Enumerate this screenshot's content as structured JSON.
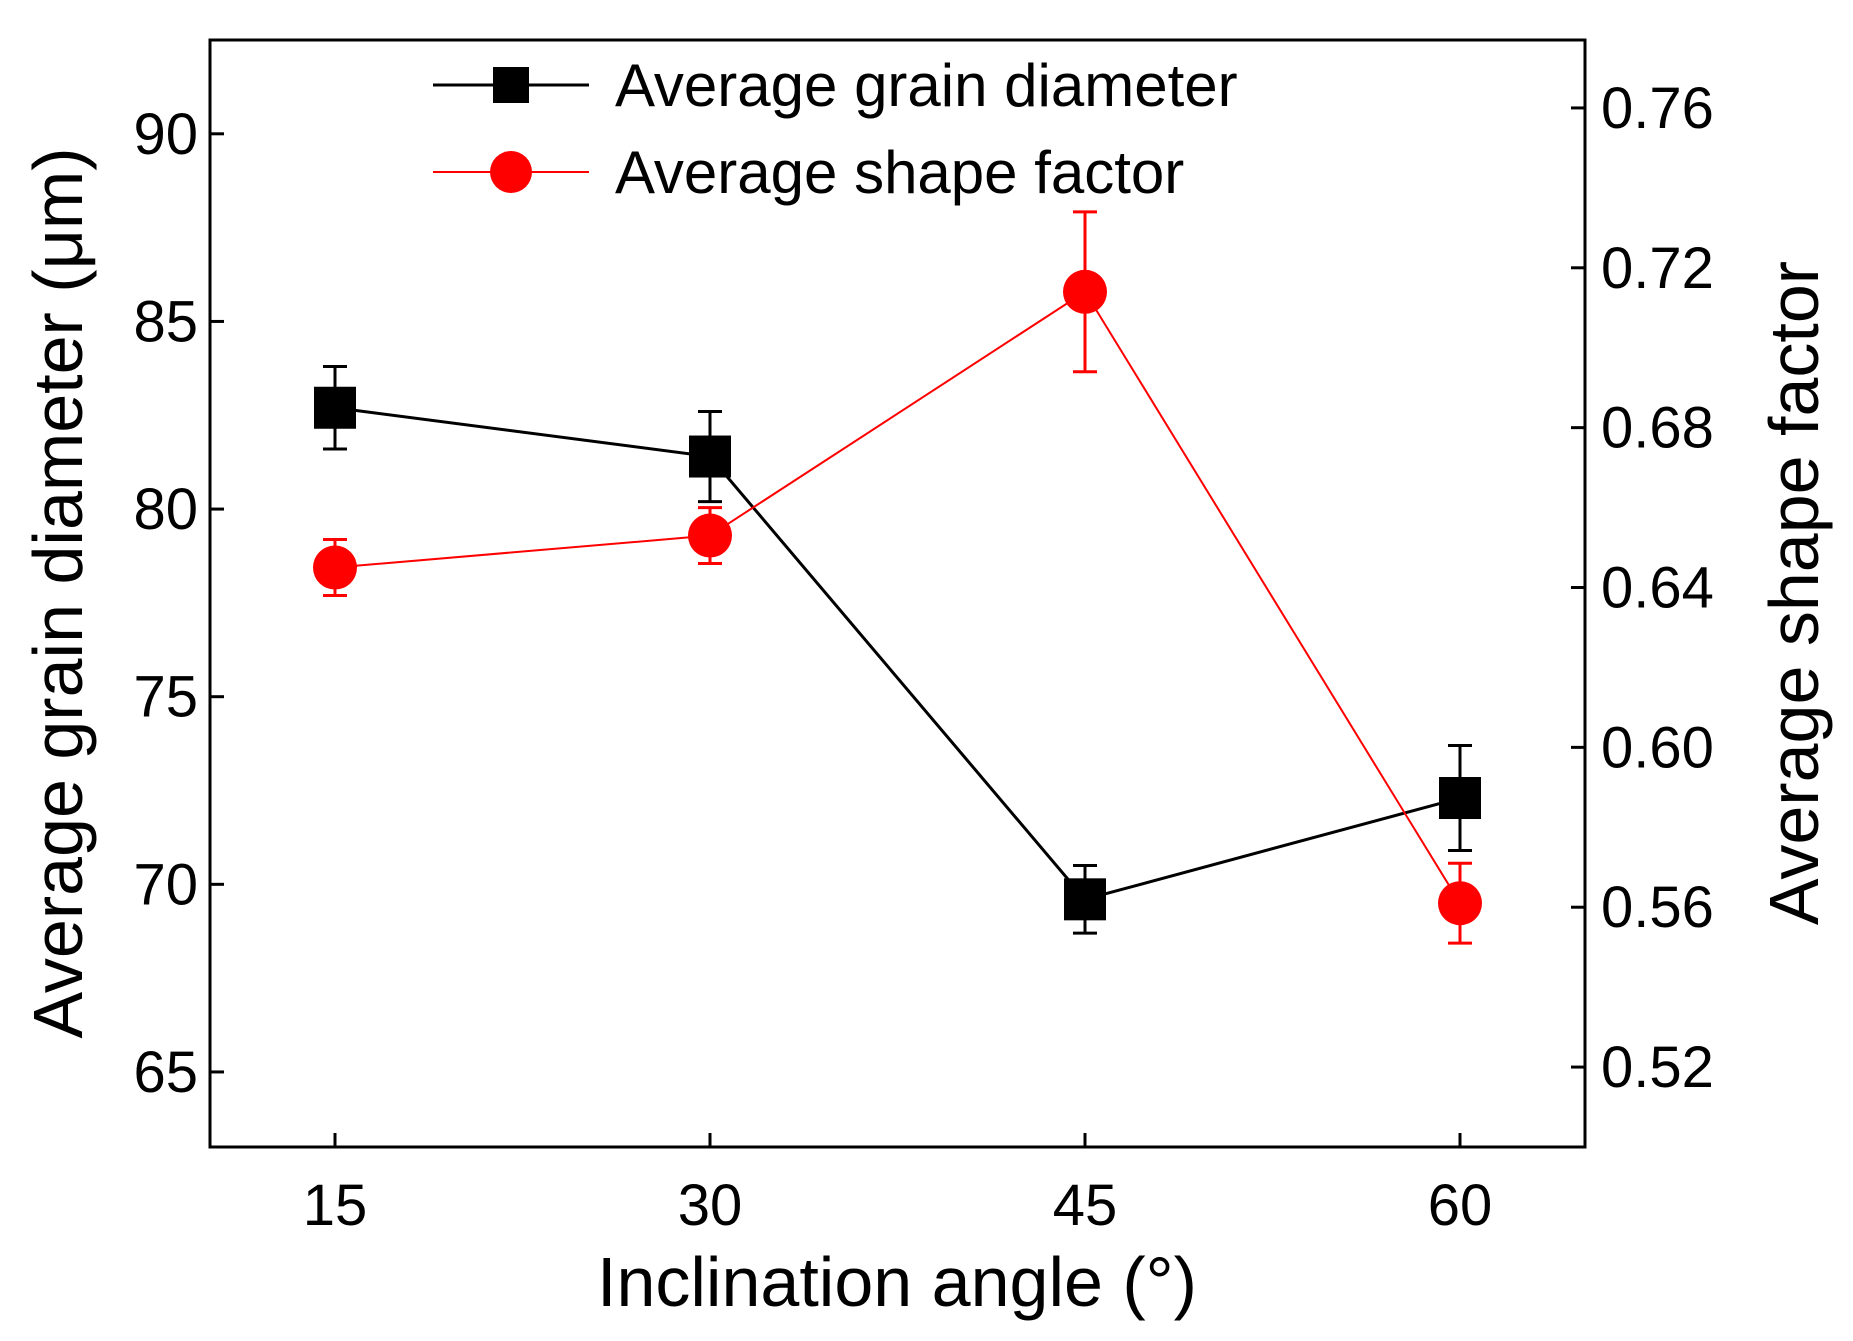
{
  "chart_data": {
    "type": "line",
    "x": [
      15,
      30,
      45,
      60
    ],
    "xlabel": "Inclination angle (°)",
    "x_tick_labels": [
      "15",
      "30",
      "45",
      "60"
    ],
    "xlim": [
      10,
      65
    ],
    "ylabel": "Average grain diameter (μm)",
    "ylim": [
      63,
      92.5
    ],
    "y_ticks": [
      65,
      70,
      75,
      80,
      85,
      90
    ],
    "y_tick_labels": [
      "65",
      "70",
      "75",
      "80",
      "85",
      "90"
    ],
    "y2label": "Average shape factor",
    "y2lim": [
      0.5,
      0.777
    ],
    "y2_ticks": [
      0.52,
      0.56,
      0.6,
      0.64,
      0.68,
      0.72,
      0.76
    ],
    "y2_tick_labels": [
      "0.52",
      "0.56",
      "0.60",
      "0.64",
      "0.68",
      "0.72",
      "0.76"
    ],
    "grid": false,
    "legend_position": "top-center",
    "series": [
      {
        "name": "Average grain diameter",
        "axis": "left",
        "color": "#000000",
        "marker": "square",
        "values": [
          82.7,
          81.4,
          69.6,
          72.3
        ],
        "errors": [
          1.1,
          1.2,
          0.9,
          1.4
        ]
      },
      {
        "name": "Average shape factor",
        "axis": "right",
        "color": "#ff0000",
        "marker": "circle",
        "values": [
          0.645,
          0.653,
          0.714,
          0.561
        ],
        "errors": [
          0.007,
          0.007,
          0.02,
          0.01
        ]
      }
    ]
  }
}
